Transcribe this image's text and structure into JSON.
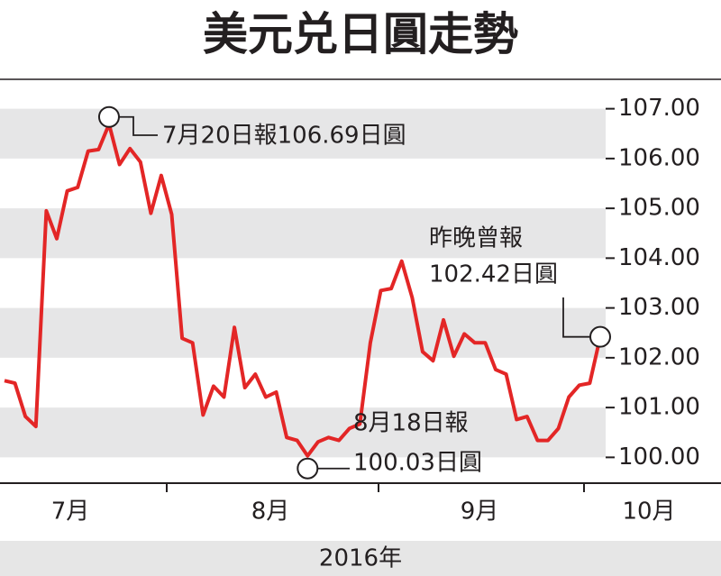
{
  "chart_data": {
    "type": "line",
    "title": "美元兑日圓走勢",
    "values": [
      101.54,
      101.49,
      100.82,
      100.62,
      104.95,
      104.39,
      105.35,
      105.42,
      106.15,
      106.18,
      106.69,
      105.88,
      106.2,
      105.93,
      104.9,
      105.66,
      104.88,
      102.39,
      102.3,
      100.85,
      101.43,
      101.21,
      102.61,
      101.4,
      101.67,
      101.21,
      101.31,
      100.4,
      100.34,
      100.03,
      100.31,
      100.4,
      100.34,
      100.58,
      100.67,
      102.3,
      103.35,
      103.39,
      103.94,
      103.21,
      102.12,
      101.94,
      102.76,
      102.03,
      102.48,
      102.3,
      102.3,
      101.76,
      101.67,
      100.76,
      100.82,
      100.34,
      100.34,
      100.58,
      101.21,
      101.45,
      101.49,
      102.42
    ],
    "color": "#e32626",
    "months": [
      "7月",
      "8月",
      "9月",
      "10月"
    ],
    "x_label": "2016年",
    "ylim": [
      99.5,
      107.5
    ],
    "yticks": [
      {
        "value": 100,
        "label": "100.00"
      },
      {
        "value": 101,
        "label": "101.00"
      },
      {
        "value": 102,
        "label": "102.00"
      },
      {
        "value": 103,
        "label": "103.00"
      },
      {
        "value": 104,
        "label": "104.00"
      },
      {
        "value": 105,
        "label": "105.00"
      },
      {
        "value": 106,
        "label": "106.00"
      },
      {
        "value": 107,
        "label": "107.00"
      }
    ],
    "annotations": [
      {
        "text": "7月20日報106.69日圓",
        "point": 10
      },
      {
        "text": [
          "8月18日報",
          "100.03日圓"
        ],
        "point": 29
      },
      {
        "text": [
          "昨晚曾報",
          "102.42日圓"
        ],
        "point": 57
      }
    ]
  }
}
